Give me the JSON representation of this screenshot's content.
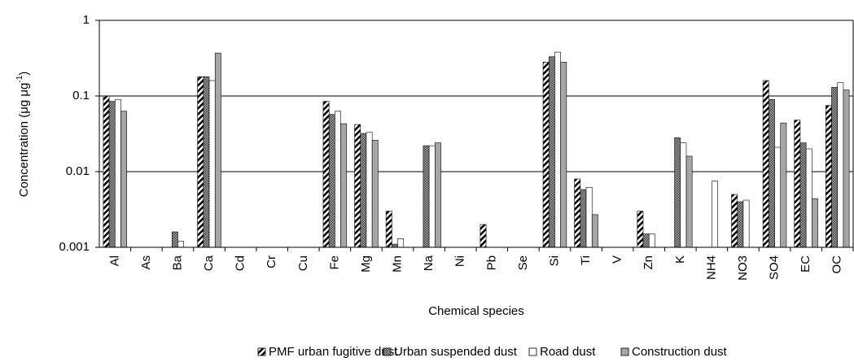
{
  "chart_data": {
    "type": "bar",
    "y_label": {
      "main": "Concentration (μg μg",
      "sup": "-1",
      "end": ")"
    },
    "x_label": "Chemical species",
    "log_scale": true,
    "grid": true,
    "legend": "bottom",
    "ylim": [
      0.001,
      1
    ],
    "yticks": [
      0.001,
      0.01,
      0.1,
      1
    ],
    "categories": [
      "Al",
      "As",
      "Ba",
      "Ca",
      "Cd",
      "Cr",
      "Cu",
      "Fe",
      "Mg",
      "Mn",
      "Na",
      "Ni",
      "Pb",
      "Se",
      "Si",
      "Ti",
      "V",
      "Zn",
      "K",
      "NH4",
      "NO3",
      "SO4",
      "EC",
      "OC"
    ],
    "series": [
      {
        "name": "PMF urban fugitive dust",
        "color": "#ffffff",
        "pattern": "hatch",
        "values": [
          0.1,
          null,
          null,
          0.18,
          null,
          null,
          null,
          0.085,
          0.042,
          0.003,
          null,
          null,
          0.002,
          null,
          0.28,
          0.008,
          null,
          0.003,
          null,
          null,
          0.005,
          0.16,
          0.048,
          0.075
        ]
      },
      {
        "name": "Urban suspended dust",
        "color": "#7f7f7f",
        "pattern": "dots",
        "values": [
          0.085,
          null,
          0.0016,
          0.18,
          null,
          null,
          null,
          0.057,
          0.032,
          0.0011,
          0.022,
          null,
          null,
          null,
          0.33,
          0.0058,
          null,
          0.0015,
          0.028,
          null,
          0.004,
          0.09,
          0.024,
          0.13
        ]
      },
      {
        "name": "Road dust",
        "color": "#ffffff",
        "pattern": "none",
        "values": [
          0.09,
          null,
          0.0012,
          0.16,
          null,
          null,
          null,
          0.063,
          0.033,
          0.0013,
          0.022,
          null,
          null,
          null,
          0.38,
          0.0062,
          null,
          0.0015,
          0.024,
          0.0075,
          0.0042,
          0.021,
          0.02,
          0.15
        ]
      },
      {
        "name": "Construction dust",
        "color": "#a6a6a6",
        "pattern": "none",
        "values": [
          0.063,
          null,
          null,
          0.37,
          null,
          null,
          null,
          0.043,
          0.026,
          null,
          0.024,
          null,
          null,
          null,
          0.28,
          0.0027,
          null,
          null,
          0.016,
          null,
          null,
          0.044,
          0.0044,
          0.12
        ]
      }
    ]
  }
}
